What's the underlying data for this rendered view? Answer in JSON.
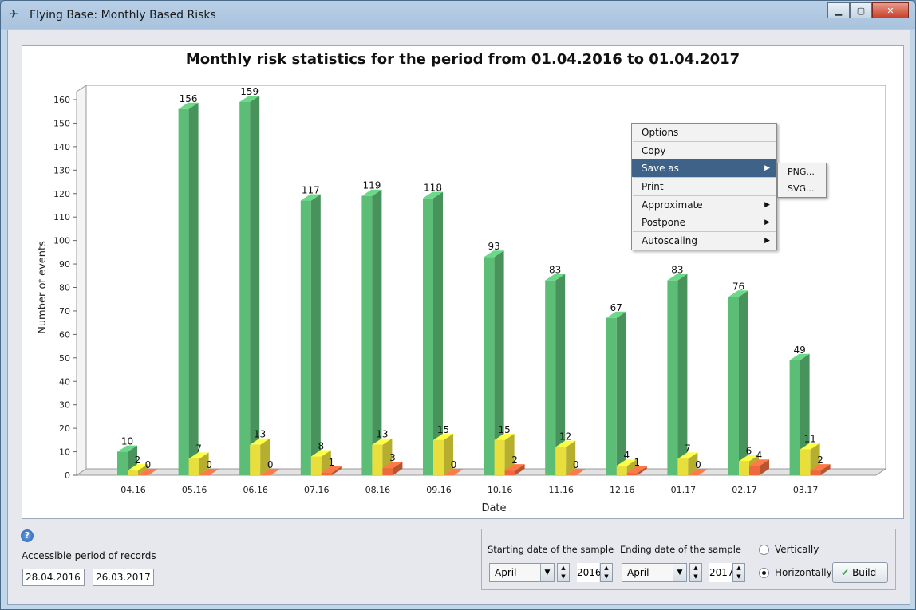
{
  "window": {
    "title": "Flying Base: Monthly Based Risks"
  },
  "chart_data": {
    "type": "bar",
    "title": "Monthly risk statistics for the period from 01.04.2016 to 01.04.2017",
    "xlabel": "Date",
    "ylabel": "Number of events",
    "ylim": [
      0,
      160
    ],
    "yticks": [
      0,
      10,
      20,
      30,
      40,
      50,
      60,
      70,
      80,
      90,
      100,
      110,
      120,
      130,
      140,
      150,
      160
    ],
    "categories": [
      "04.16",
      "05.16",
      "06.16",
      "07.16",
      "08.16",
      "09.16",
      "10.16",
      "11.16",
      "12.16",
      "01.17",
      "02.17",
      "03.17"
    ],
    "series": [
      {
        "values": [
          10,
          156,
          159,
          117,
          119,
          118,
          93,
          83,
          67,
          83,
          76,
          49
        ],
        "color": "#5cbd76"
      },
      {
        "values": [
          2,
          7,
          13,
          8,
          13,
          15,
          15,
          12,
          4,
          7,
          6,
          11
        ],
        "color": "#e8df3c"
      },
      {
        "values": [
          0,
          0,
          0,
          1,
          3,
          0,
          2,
          0,
          1,
          0,
          4,
          2
        ],
        "color": "#ee6a3e"
      }
    ],
    "grid": false,
    "legend": "none",
    "style": "3d"
  },
  "context_menu": {
    "items": [
      {
        "label": "Options"
      },
      {
        "label": "Copy"
      },
      {
        "label": "Save as"
      },
      {
        "label": "Print"
      },
      {
        "label": "Approximate"
      },
      {
        "label": "Postpone"
      },
      {
        "label": "Autoscaling"
      }
    ],
    "submenu": [
      "PNG...",
      "SVG..."
    ]
  },
  "records": {
    "label": "Accessible period of records",
    "start": "28.04.2016",
    "end": "26.03.2017"
  },
  "sample": {
    "start_label": "Starting date of the sample",
    "end_label": "Ending date of the sample",
    "start_month": "April",
    "start_year": "2016",
    "end_month": "April",
    "end_year": "2017",
    "orientation": {
      "vertical": "Vertically",
      "horizontal": "Horizontally",
      "selected": "horizontal"
    },
    "build_label": "Build"
  }
}
